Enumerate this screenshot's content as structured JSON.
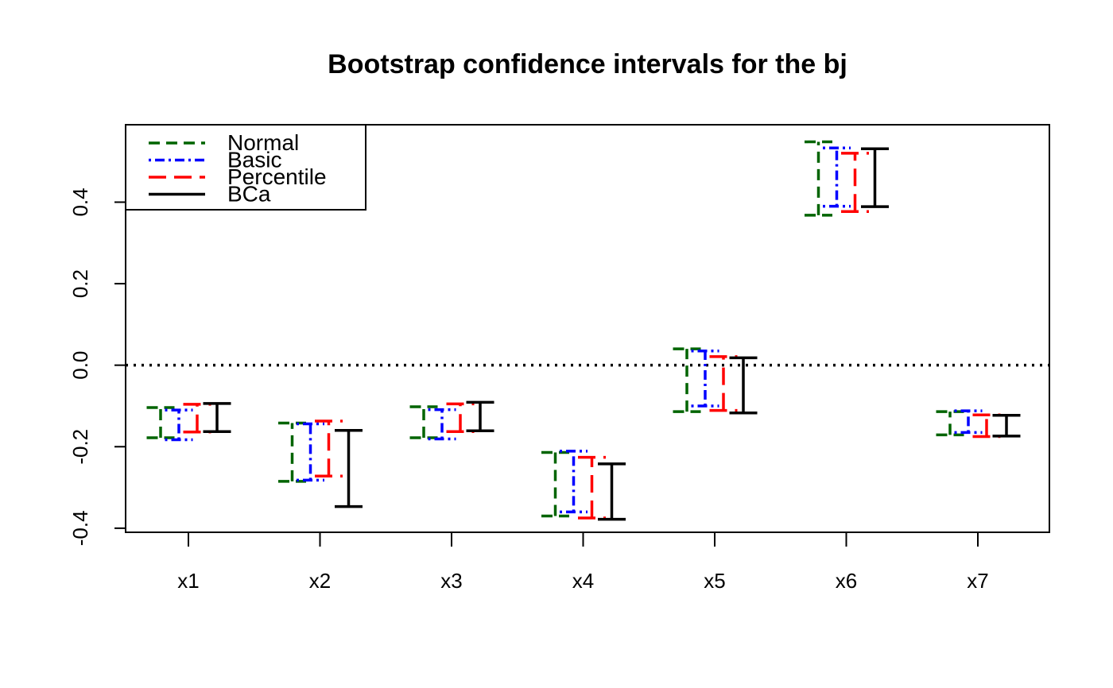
{
  "chart_data": {
    "type": "errorbar",
    "title": "Bootstrap confidence intervals for the bj",
    "xlabel": "",
    "ylabel": "",
    "categories": [
      "x1",
      "x2",
      "x3",
      "x4",
      "x5",
      "x6",
      "x7"
    ],
    "y_ticks": [
      "-0.4",
      "-0.2",
      "0.0",
      "0.2",
      "0.4"
    ],
    "ylim": [
      -0.41,
      0.59
    ],
    "reference_line": {
      "y": 0.0,
      "style": "dotted",
      "color": "#000000"
    },
    "legend": {
      "position": "top-left"
    },
    "series": [
      {
        "name": "Normal",
        "color": "#006400",
        "dash": "dashed",
        "intervals": [
          [
            -0.178,
            -0.104
          ],
          [
            -0.285,
            -0.142
          ],
          [
            -0.178,
            -0.102
          ],
          [
            -0.37,
            -0.214
          ],
          [
            -0.114,
            0.04
          ],
          [
            0.368,
            0.548
          ],
          [
            -0.171,
            -0.114
          ]
        ]
      },
      {
        "name": "Basic",
        "color": "#0000ff",
        "dash": "dotdash",
        "intervals": [
          [
            -0.183,
            -0.11
          ],
          [
            -0.282,
            -0.144
          ],
          [
            -0.181,
            -0.109
          ],
          [
            -0.36,
            -0.211
          ],
          [
            -0.1,
            0.035
          ],
          [
            0.39,
            0.533
          ],
          [
            -0.165,
            -0.112
          ]
        ]
      },
      {
        "name": "Percentile",
        "color": "#ff0000",
        "dash": "longdash",
        "intervals": [
          [
            -0.164,
            -0.096
          ],
          [
            -0.272,
            -0.137
          ],
          [
            -0.163,
            -0.095
          ],
          [
            -0.375,
            -0.226
          ],
          [
            -0.111,
            0.021
          ],
          [
            0.377,
            0.52
          ],
          [
            -0.175,
            -0.122
          ]
        ]
      },
      {
        "name": "BCa",
        "color": "#000000",
        "dash": "solid",
        "intervals": [
          [
            -0.163,
            -0.094
          ],
          [
            -0.347,
            -0.16
          ],
          [
            -0.161,
            -0.091
          ],
          [
            -0.378,
            -0.242
          ],
          [
            -0.117,
            0.018
          ],
          [
            0.389,
            0.531
          ],
          [
            -0.174,
            -0.123
          ]
        ]
      }
    ]
  }
}
